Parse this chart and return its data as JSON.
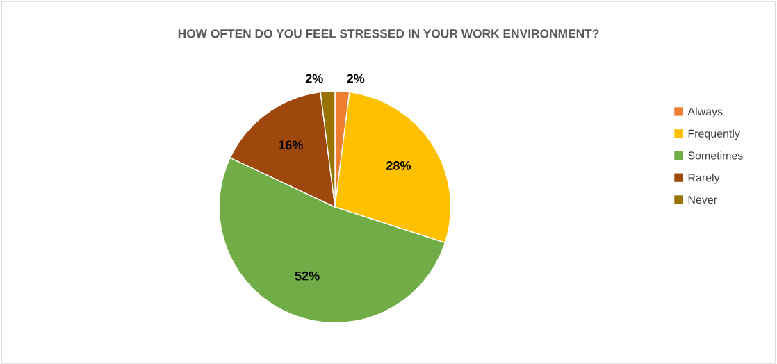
{
  "chart_data": {
    "type": "pie",
    "title": "HOW OFTEN DO YOU FEEL STRESSED IN YOUR WORK ENVIRONMENT?",
    "categories": [
      "Always",
      "Frequently",
      "Sometimes",
      "Rarely",
      "Never"
    ],
    "values": [
      2,
      28,
      52,
      16,
      2
    ],
    "colors": [
      "#ed7d31",
      "#ffc000",
      "#70ad47",
      "#9e480e",
      "#997300"
    ],
    "value_labels": [
      "2%",
      "28%",
      "52%",
      "16%",
      "2%"
    ],
    "legend": "right"
  }
}
